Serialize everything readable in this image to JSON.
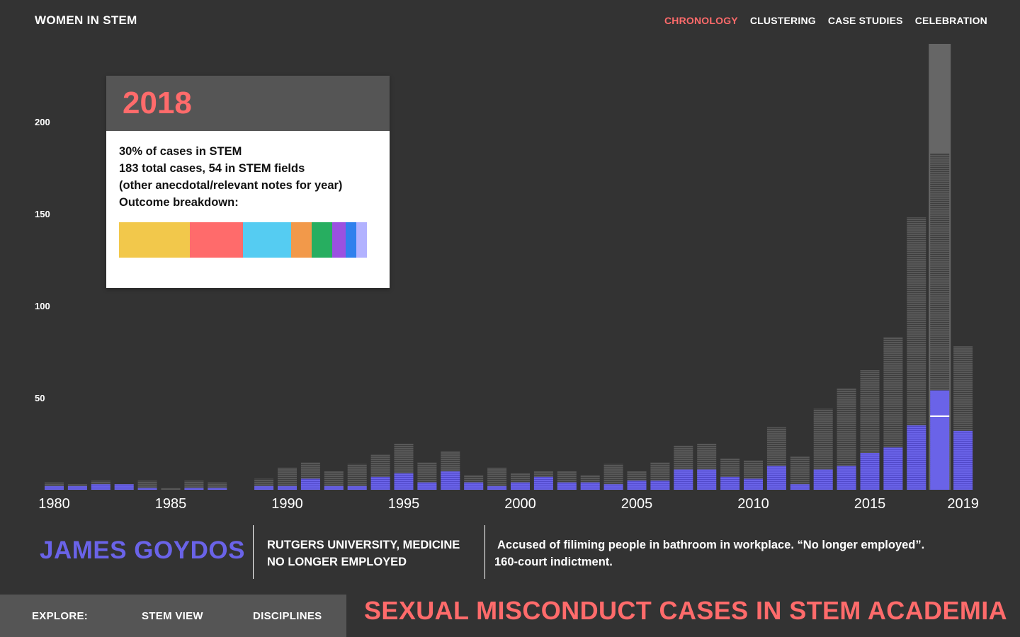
{
  "header": {
    "app_title": "WOMEN IN STEM",
    "nav": [
      {
        "label": "CHRONOLOGY",
        "active": true
      },
      {
        "label": "CLUSTERING",
        "active": false
      },
      {
        "label": "CASE STUDIES",
        "active": false
      },
      {
        "label": "CELEBRATION",
        "active": false
      }
    ]
  },
  "colors": {
    "accent": "#ff6b6b",
    "stem_bar": "#6a63e8",
    "total_bar": "#5a5a5a",
    "background": "#333333"
  },
  "tooltip": {
    "year": "2018",
    "lines": [
      "30% of cases in STEM",
      "183 total cases, 54 in STEM fields",
      "(other anecdotal/relevant notes for year)",
      "Outcome breakdown:"
    ],
    "breakdown": [
      {
        "color": "#f2c84b",
        "share": 28.6
      },
      {
        "color": "#ff6b6b",
        "share": 21.4
      },
      {
        "color": "#55ccf2",
        "share": 19.4
      },
      {
        "color": "#f2994a",
        "share": 8.3
      },
      {
        "color": "#27ae60",
        "share": 8.3
      },
      {
        "color": "#9b51e0",
        "share": 5.4
      },
      {
        "color": "#2f80ed",
        "share": 4.3
      },
      {
        "color": "#b2b2ff",
        "share": 4.3
      }
    ]
  },
  "chart_data": {
    "type": "bar",
    "x": [
      1980,
      1981,
      1982,
      1983,
      1984,
      1985,
      1986,
      1987,
      1988,
      1989,
      1990,
      1991,
      1992,
      1993,
      1994,
      1995,
      1996,
      1997,
      1998,
      1999,
      2000,
      2001,
      2002,
      2003,
      2004,
      2005,
      2006,
      2007,
      2008,
      2009,
      2010,
      2011,
      2012,
      2013,
      2014,
      2015,
      2016,
      2017,
      2018,
      2019
    ],
    "series": [
      {
        "name": "total",
        "values": [
          4,
          3,
          5,
          3,
          5,
          1,
          5,
          4,
          0,
          6,
          12,
          15,
          10,
          14,
          19,
          25,
          15,
          21,
          8,
          12,
          9,
          10,
          10,
          8,
          14,
          10,
          15,
          24,
          25,
          17,
          16,
          34,
          18,
          44,
          55,
          65,
          83,
          148,
          183,
          78
        ]
      },
      {
        "name": "stem",
        "values": [
          2,
          2,
          3,
          3,
          1,
          0,
          1,
          1,
          0,
          2,
          2,
          6,
          2,
          2,
          7,
          9,
          4,
          10,
          4,
          2,
          4,
          7,
          4,
          4,
          3,
          5,
          5,
          11,
          11,
          7,
          6,
          13,
          3,
          11,
          13,
          20,
          23,
          35,
          54,
          32
        ]
      }
    ],
    "highlight_index": 38,
    "x_tick_labels": [
      "1980",
      "1985",
      "1990",
      "1995",
      "2000",
      "2005",
      "2010",
      "2015",
      "2019"
    ],
    "y_tick_labels": [
      "50",
      "100",
      "150",
      "200"
    ],
    "ylim": [
      0,
      220
    ],
    "grid": false,
    "hover_value": 40
  },
  "detail": {
    "name": "JAMES GOYDOS",
    "affiliation_line1": "RUTGERS UNIVERSITY, MEDICINE",
    "affiliation_line2": "NO LONGER EMPLOYED",
    "description_line1": " Accused of filiming people in bathroom in workplace. “No longer employed”.",
    "description_line2": "160-court indictment."
  },
  "footer": {
    "explore_label": "EXPLORE:",
    "stem_view": "STEM VIEW",
    "disciplines": "DISCIPLINES",
    "title": "SEXUAL MISCONDUCT CASES IN STEM ACADEMIA"
  }
}
